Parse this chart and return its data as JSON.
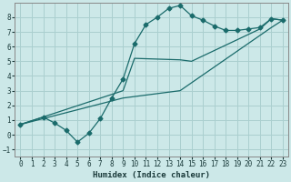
{
  "xlabel": "Humidex (Indice chaleur)",
  "background_color": "#cce8e8",
  "grid_color": "#aacfcf",
  "line_color": "#1a6b6b",
  "xlim": [
    -0.5,
    23.5
  ],
  "ylim": [
    -1.5,
    9.0
  ],
  "xticks": [
    0,
    1,
    2,
    3,
    4,
    5,
    6,
    7,
    8,
    9,
    10,
    11,
    12,
    13,
    14,
    15,
    16,
    17,
    18,
    19,
    20,
    21,
    22,
    23
  ],
  "yticks": [
    -1,
    0,
    1,
    2,
    3,
    4,
    5,
    6,
    7,
    8
  ],
  "curve1_x": [
    0,
    2,
    3,
    4,
    5,
    6,
    7,
    8,
    9,
    10,
    11,
    12,
    13,
    14,
    15,
    16,
    17,
    18,
    19,
    20,
    21,
    22,
    23
  ],
  "curve1_y": [
    0.7,
    1.2,
    0.8,
    0.3,
    -0.5,
    0.1,
    1.1,
    2.5,
    3.8,
    6.2,
    7.5,
    8.0,
    8.6,
    8.8,
    8.1,
    7.8,
    7.4,
    7.1,
    7.1,
    7.2,
    7.3,
    7.9,
    7.8
  ],
  "curve2_x": [
    0,
    9,
    10,
    14,
    15,
    21,
    22,
    23
  ],
  "curve2_y": [
    0.7,
    3.0,
    5.2,
    5.1,
    5.0,
    7.2,
    7.9,
    7.8
  ],
  "curve3_x": [
    0,
    9,
    14,
    22,
    23
  ],
  "curve3_y": [
    0.7,
    2.5,
    3.0,
    7.3,
    7.8
  ]
}
